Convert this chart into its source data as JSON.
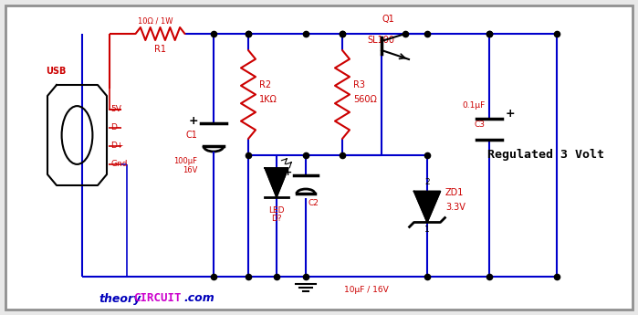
{
  "bg_color": "#e8e8e8",
  "inner_bg": "#ffffff",
  "wire_color": "#0000cc",
  "red_color": "#cc0000",
  "black_color": "#000000",
  "text_red": "#cc0000",
  "text_blue": "#0000bb",
  "text_magenta": "#cc00cc",
  "border_color": "#909090",
  "regulated_label": "Regulated 3 Volt",
  "r1_label": "R1",
  "r1_val": "10Ω / 1W",
  "r2_label": "R2",
  "r2_val": "1KΩ",
  "r3_label": "R3",
  "r3_val": "560Ω",
  "c1_label": "C1",
  "c1_val": "100μF\n16V",
  "c2_label": "C2",
  "c2_val": "10μF / 16V",
  "c3_label": "C3",
  "c3_val": "0.1μF",
  "zd1_label": "ZD1",
  "zd1_val": "3.3V",
  "led_label": "LED\nD?",
  "q1_label": "Q1",
  "q1_val": "SL100",
  "usb_label": "USB",
  "usb_pins": [
    "5V",
    "D-",
    "D+",
    "Gnd"
  ],
  "watermark_theory": "theory",
  "watermark_circuit": "CIRCUIT",
  "watermark_com": ".com"
}
